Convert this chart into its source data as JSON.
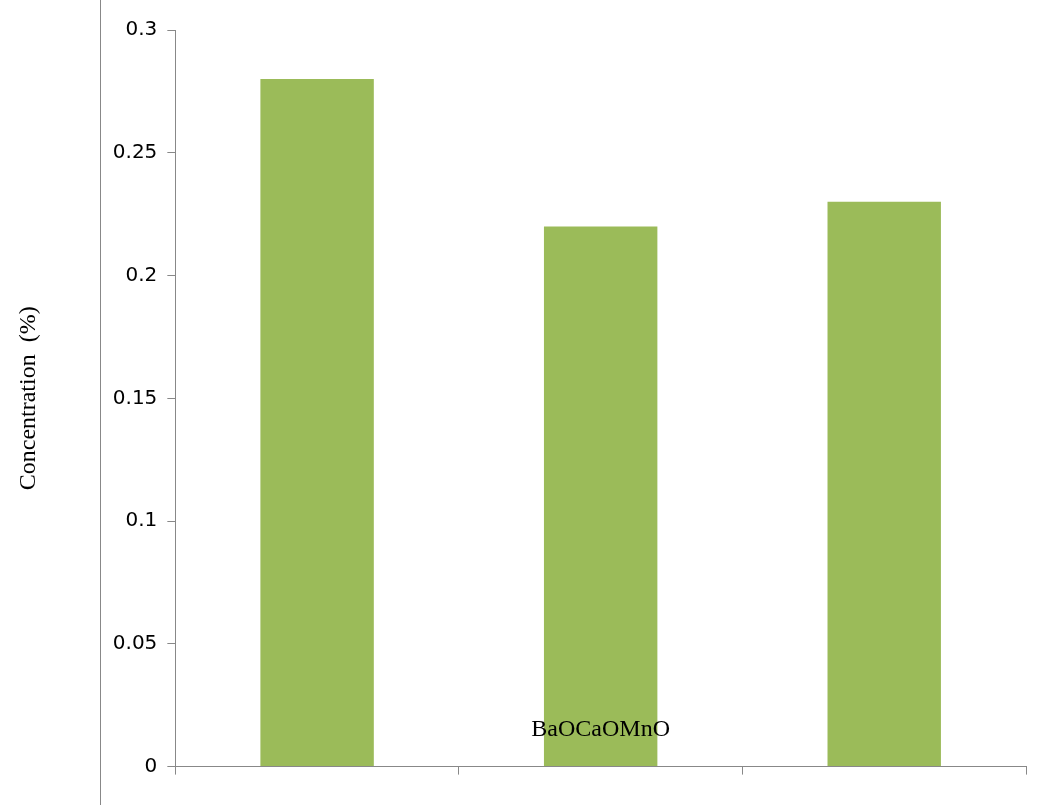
{
  "chart_data": {
    "type": "bar",
    "xlabel": "BaOCaOMnO",
    "ylabel": "Concentration  (%)",
    "categories": [
      null,
      null,
      null
    ],
    "values": [
      0.28,
      0.22,
      0.23
    ],
    "color": "#9bbb59",
    "ylim": [
      0,
      0.3
    ],
    "yticks": [
      0,
      0.05,
      0.1,
      0.15,
      0.2,
      0.25,
      0.3
    ],
    "grid": false,
    "legend": false
  }
}
